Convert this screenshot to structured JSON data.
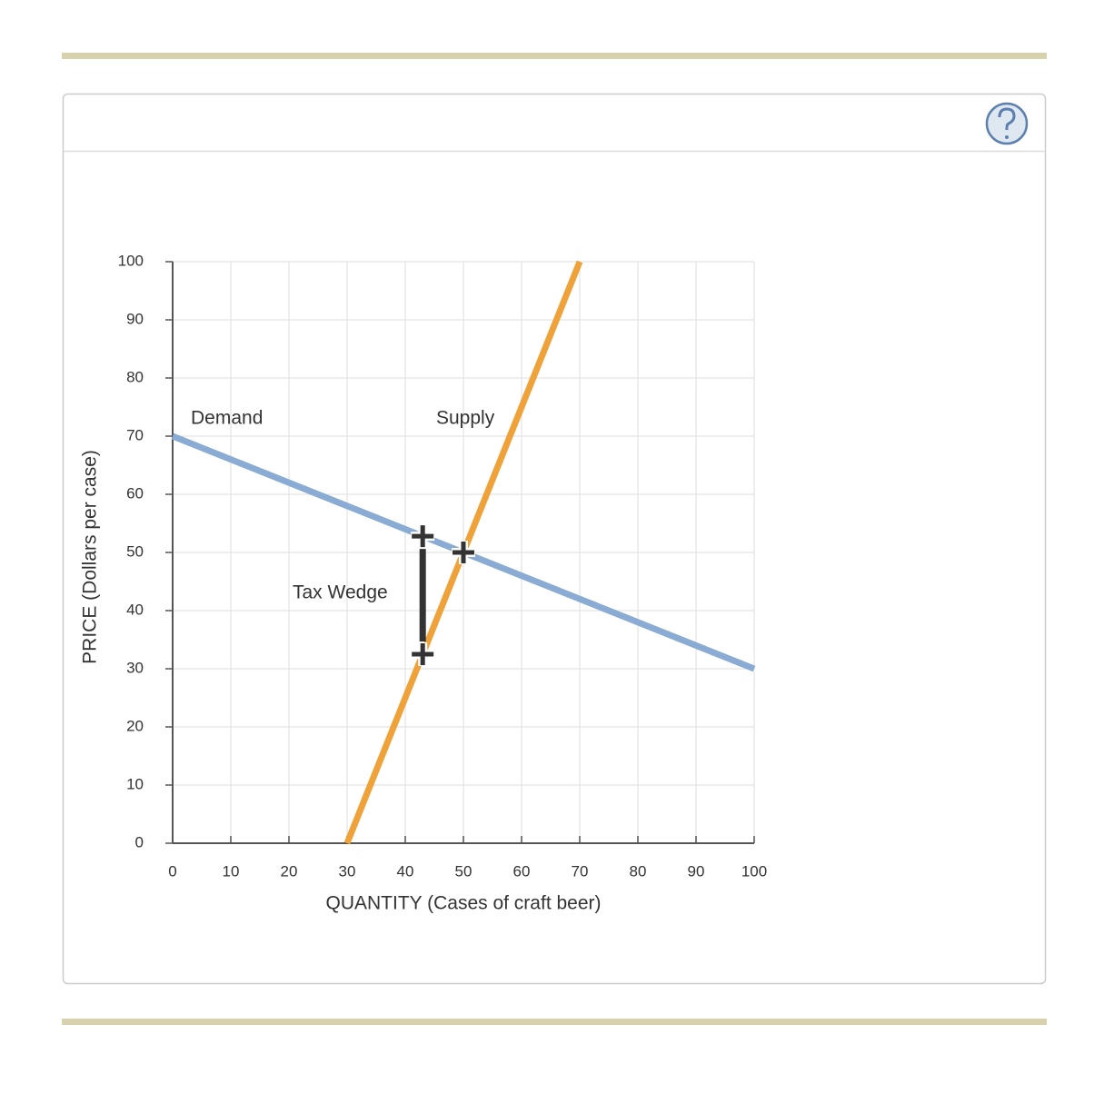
{
  "chart_data": {
    "type": "line",
    "x_label": "QUANTITY (Cases of craft beer)",
    "y_label": "PRICE (Dollars per case)",
    "xlim": [
      0,
      100
    ],
    "ylim": [
      0,
      100
    ],
    "xticks": [
      0,
      10,
      20,
      30,
      40,
      50,
      60,
      70,
      80,
      90,
      100
    ],
    "yticks": [
      0,
      10,
      20,
      30,
      40,
      50,
      60,
      70,
      80,
      90,
      100
    ],
    "grid": true,
    "series": [
      {
        "name": "Demand",
        "color": "#8aabd3",
        "x": [
          0,
          100
        ],
        "values": [
          70,
          30
        ]
      },
      {
        "name": "Supply",
        "color": "#efa23a",
        "x": [
          30,
          70
        ],
        "values": [
          0,
          100
        ]
      }
    ],
    "equilibrium": {
      "x": 50,
      "y": 50
    },
    "tax_wedge": {
      "label": "Tax Wedge",
      "x": 43,
      "top": 52.8,
      "bottom": 32.5
    }
  }
}
